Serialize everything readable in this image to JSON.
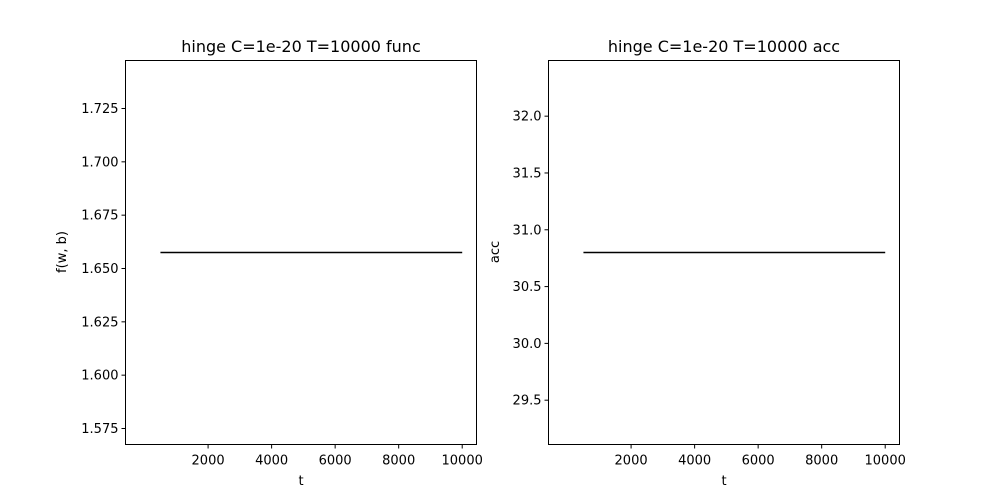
{
  "chart_data": [
    {
      "type": "line",
      "title": "hinge C=1e-20 T=10000 func",
      "xlabel": "t",
      "ylabel": "f(w, b)",
      "xlim": [
        -600,
        10450
      ],
      "ylim": [
        1.5675,
        1.7475
      ],
      "xticks": [
        2000,
        4000,
        6000,
        8000,
        10000
      ],
      "xtick_labels": [
        "2000",
        "4000",
        "6000",
        "8000",
        "10000"
      ],
      "yticks": [
        1.575,
        1.6,
        1.625,
        1.65,
        1.675,
        1.7,
        1.725
      ],
      "ytick_labels": [
        "1.575",
        "1.600",
        "1.625",
        "1.650",
        "1.675",
        "1.700",
        "1.725"
      ],
      "grid": false,
      "series": [
        {
          "x": [
            500,
            10000
          ],
          "y": [
            1.6575,
            1.6575
          ],
          "color": "#000000"
        }
      ]
    },
    {
      "type": "line",
      "title": "hinge C=1e-20 T=10000 acc",
      "xlabel": "t",
      "ylabel": "acc",
      "xlim": [
        -600,
        10450
      ],
      "ylim": [
        29.11,
        32.49
      ],
      "xticks": [
        2000,
        4000,
        6000,
        8000,
        10000
      ],
      "xtick_labels": [
        "2000",
        "4000",
        "6000",
        "8000",
        "10000"
      ],
      "yticks": [
        29.5,
        30.0,
        30.5,
        31.0,
        31.5,
        32.0
      ],
      "ytick_labels": [
        "29.5",
        "30.0",
        "30.5",
        "31.0",
        "31.5",
        "32.0"
      ],
      "grid": false,
      "series": [
        {
          "x": [
            500,
            10000
          ],
          "y": [
            30.8,
            30.8
          ],
          "color": "#000000"
        }
      ]
    }
  ]
}
